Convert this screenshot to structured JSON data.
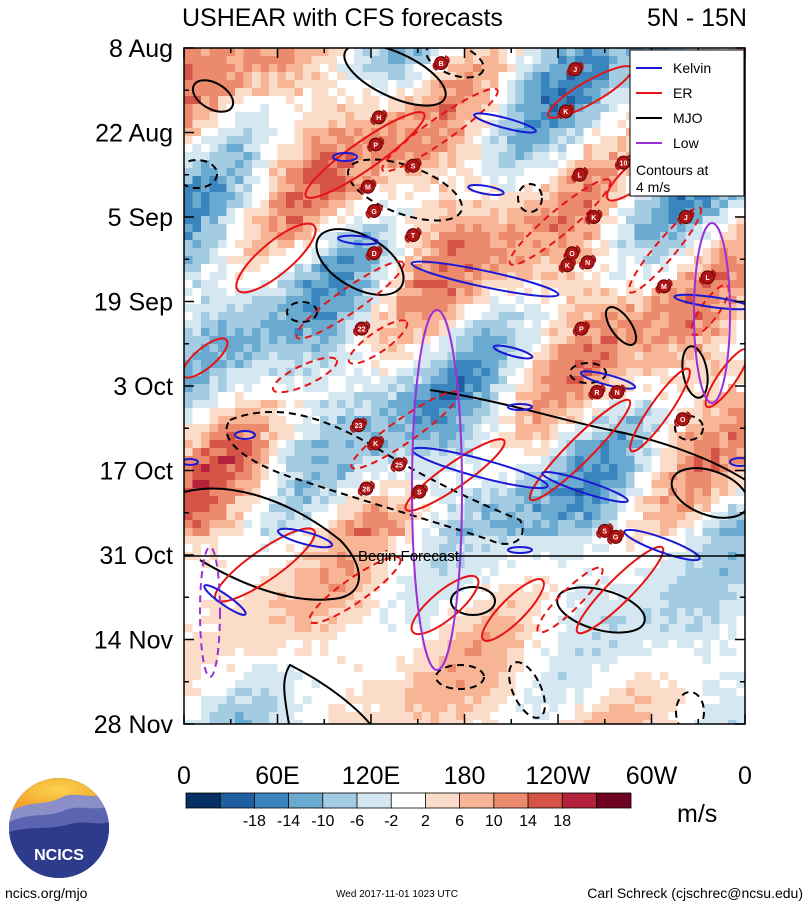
{
  "chart_data": {
    "type": "heatmap",
    "title": "USHEAR with CFS forecasts",
    "region": "5N - 15N",
    "units": "m/s",
    "x_ticks": [
      "0",
      "60E",
      "120E",
      "180",
      "120W",
      "60W",
      "0"
    ],
    "x_tick_degrees": [
      0,
      60,
      120,
      180,
      240,
      300,
      360
    ],
    "y_ticks": [
      "8 Aug",
      "22 Aug",
      "5 Sep",
      "19 Sep",
      "3 Oct",
      "17 Oct",
      "31 Oct",
      "14 Nov",
      "28 Nov"
    ],
    "y_tick_days": [
      0,
      14,
      28,
      42,
      56,
      70,
      84,
      98,
      112
    ],
    "forecast_line": {
      "label": "Begin Forecast",
      "day": 84
    },
    "colorbar": {
      "colors": [
        "#053061",
        "#1f5f9f",
        "#3a85bd",
        "#6aaad0",
        "#a3cce3",
        "#d5e7f1",
        "#ffffff",
        "#fbdcc8",
        "#f7b596",
        "#ec8a6d",
        "#d55447",
        "#b4213a",
        "#6f0120"
      ],
      "labels": [
        "-18",
        "-14",
        "-10",
        "-6",
        "-2",
        "2",
        "6",
        "10",
        "14",
        "18"
      ]
    },
    "legend": {
      "entries": [
        {
          "name": "Kelvin",
          "color": "#1a1ad6"
        },
        {
          "name": "ER",
          "color": "#e81414"
        },
        {
          "name": "MJO",
          "color": "#000000"
        },
        {
          "name": "Low",
          "color": "#9b30d9"
        }
      ],
      "note_line1": "Contours at",
      "note_line2": "4 m/s"
    },
    "storms": [
      {
        "label": "B",
        "lon": 165,
        "day": 2.5
      },
      {
        "label": "J",
        "lon": 251,
        "day": 3.5
      },
      {
        "label": "H",
        "lon": 125,
        "day": 11.5
      },
      {
        "label": "K",
        "lon": 245,
        "day": 10.5
      },
      {
        "label": "P",
        "lon": 123,
        "day": 16
      },
      {
        "label": "S",
        "lon": 147,
        "day": 19.5
      },
      {
        "label": "10",
        "lon": 282,
        "day": 19
      },
      {
        "label": "L",
        "lon": 254,
        "day": 21
      },
      {
        "label": "M",
        "lon": 118,
        "day": 23
      },
      {
        "label": "G",
        "lon": 122,
        "day": 27
      },
      {
        "label": "K",
        "lon": 263,
        "day": 28
      },
      {
        "label": "J",
        "lon": 322,
        "day": 28
      },
      {
        "label": "T",
        "lon": 147,
        "day": 31
      },
      {
        "label": "D",
        "lon": 122,
        "day": 34
      },
      {
        "label": "O",
        "lon": 249,
        "day": 34
      },
      {
        "label": "N",
        "lon": 259,
        "day": 35.5
      },
      {
        "label": "K",
        "lon": 246,
        "day": 36
      },
      {
        "label": "L",
        "lon": 336,
        "day": 38
      },
      {
        "label": "M",
        "lon": 308,
        "day": 39.5
      },
      {
        "label": "22",
        "lon": 114,
        "day": 46.5
      },
      {
        "label": "P",
        "lon": 255,
        "day": 46.5
      },
      {
        "label": "R",
        "lon": 265,
        "day": 57
      },
      {
        "label": "N",
        "lon": 278,
        "day": 57
      },
      {
        "label": "O",
        "lon": 320,
        "day": 61.5
      },
      {
        "label": "23",
        "lon": 112,
        "day": 62.5
      },
      {
        "label": "K",
        "lon": 123,
        "day": 65.5
      },
      {
        "label": "25",
        "lon": 138,
        "day": 69
      },
      {
        "label": "26",
        "lon": 117,
        "day": 73
      },
      {
        "label": "S",
        "lon": 151,
        "day": 73.5
      },
      {
        "label": "S",
        "lon": 270,
        "day": 80
      },
      {
        "label": "G",
        "lon": 277,
        "day": 81
      }
    ]
  },
  "footer": {
    "left": "ncics.org/mjo",
    "center": "Wed 2017-11-01 1023 UTC",
    "right": "Carl Schreck (cjschrec@ncsu.edu)"
  },
  "logo": {
    "text": "NCICS"
  }
}
